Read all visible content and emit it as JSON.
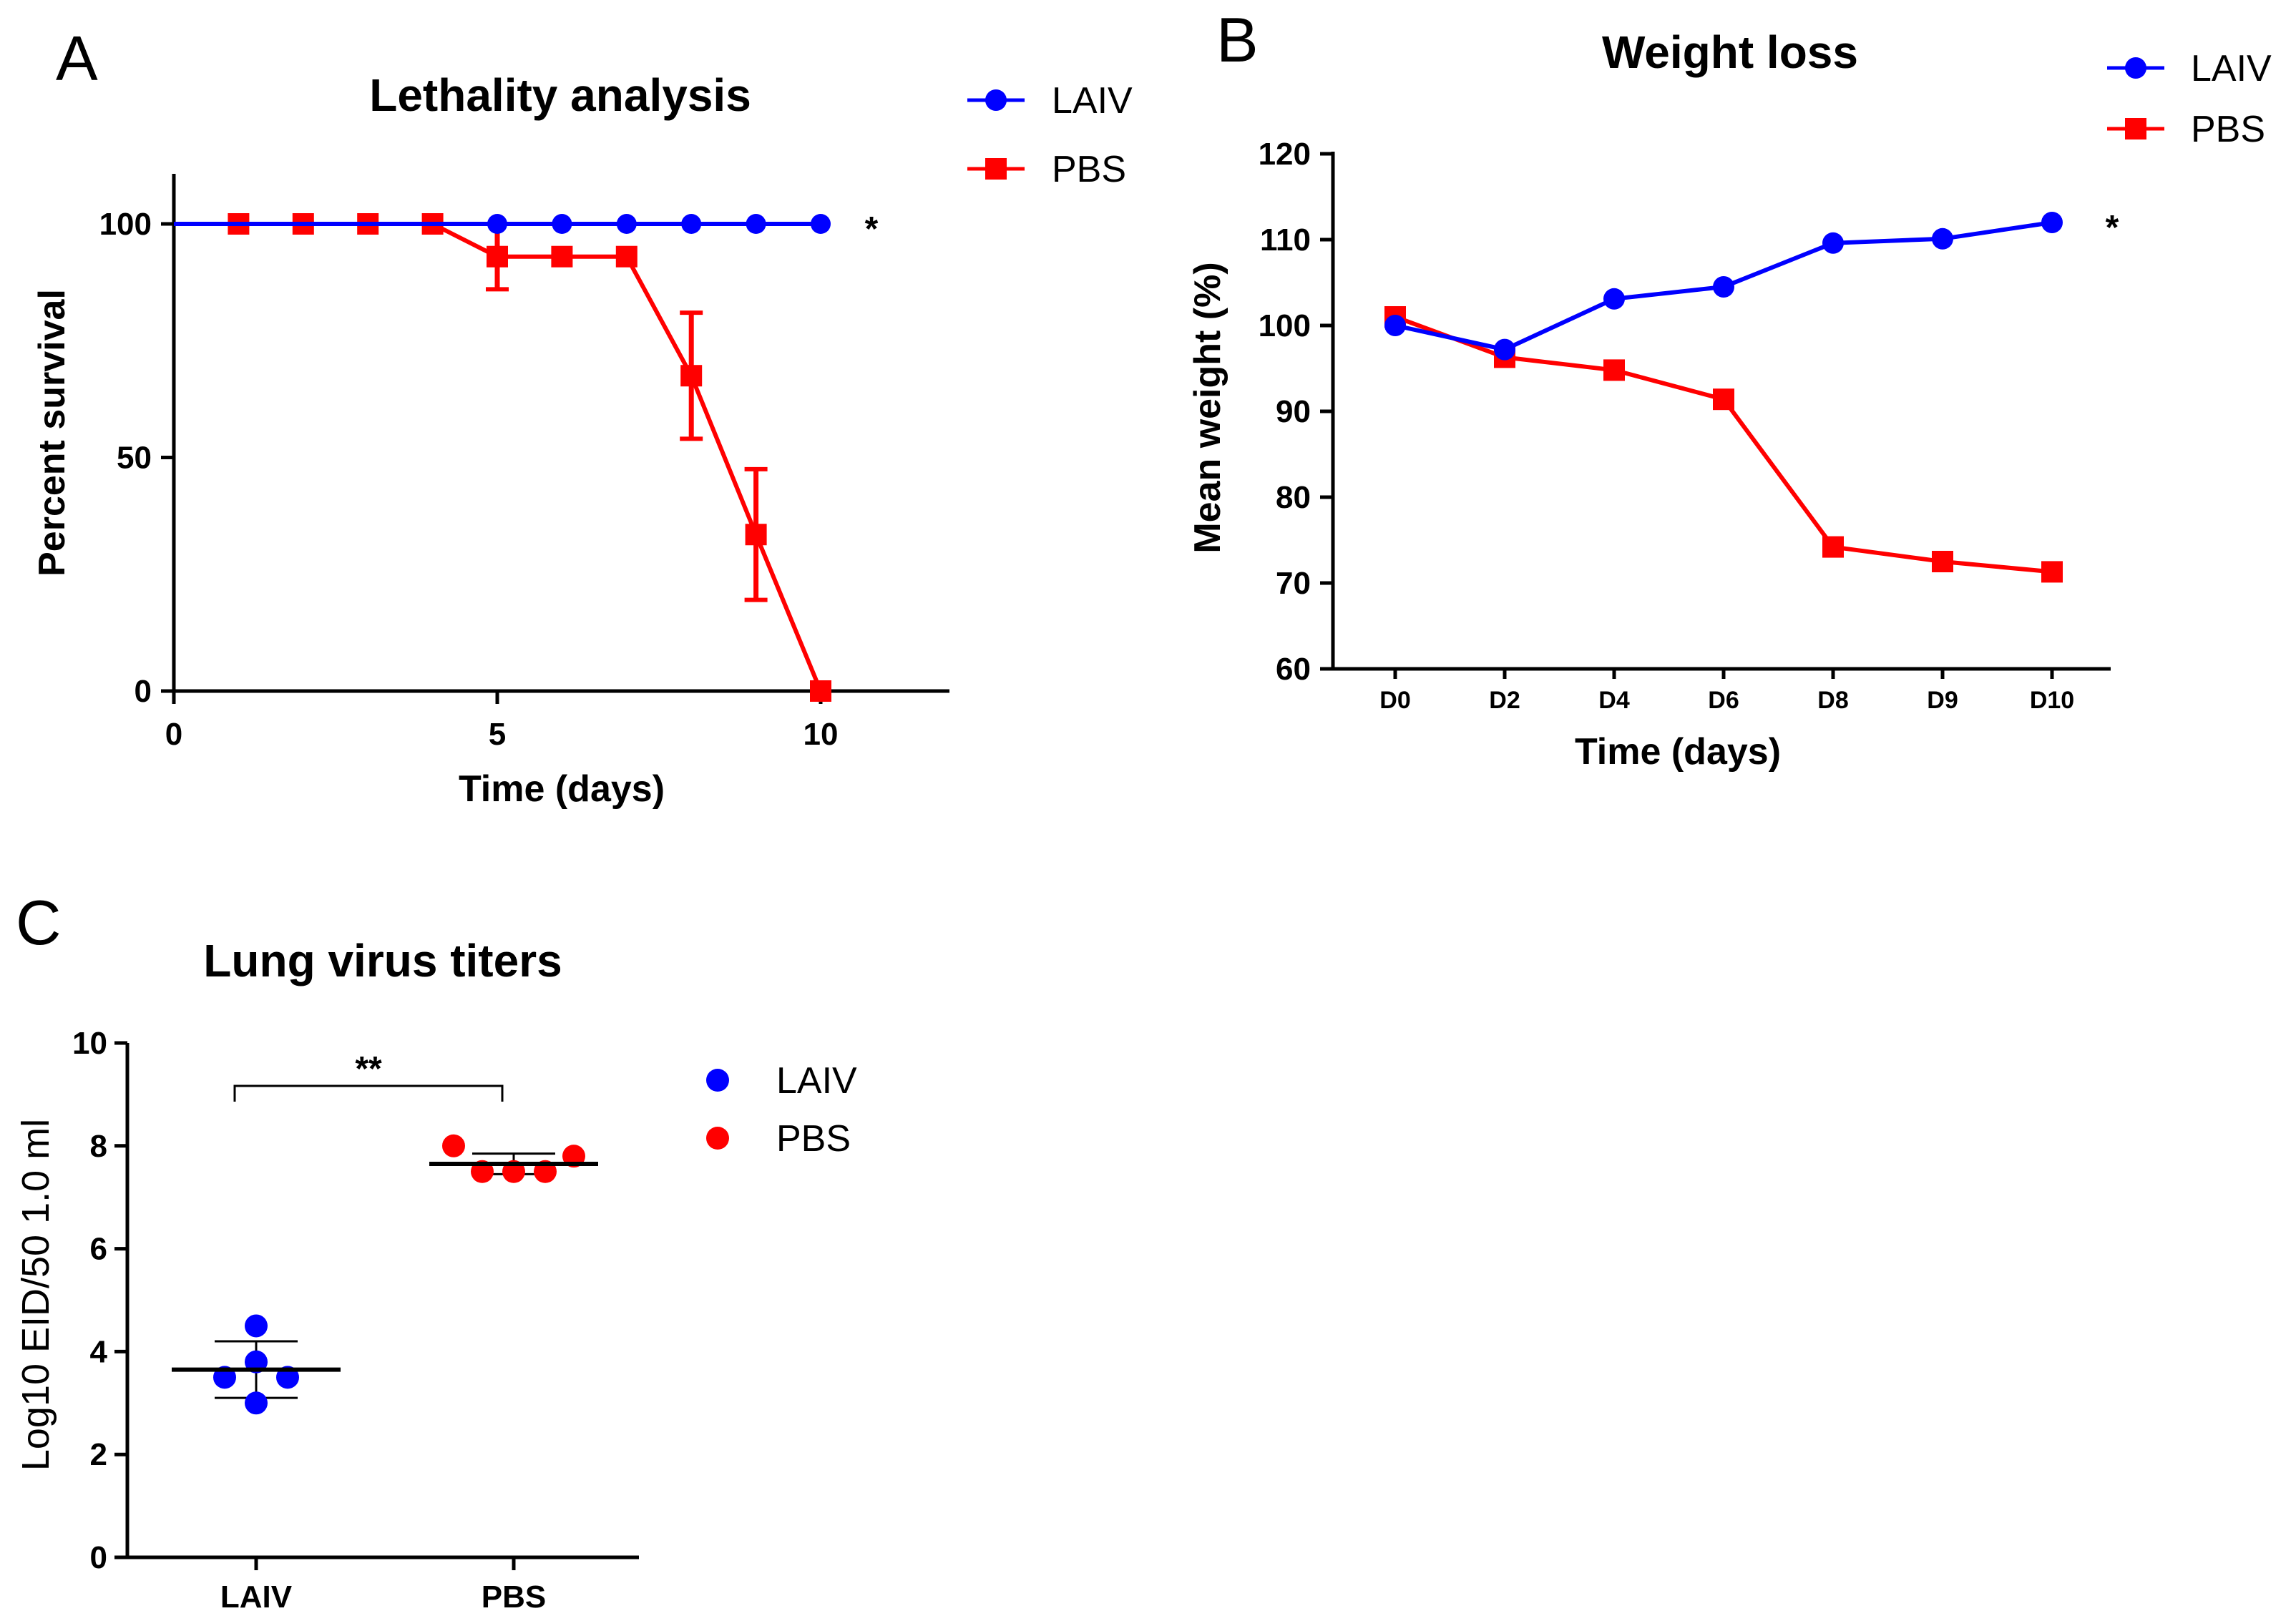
{
  "panels": {
    "a_letter": "A",
    "b_letter": "B",
    "c_letter": "C"
  },
  "colors": {
    "laiv": "#0000ff",
    "pbs": "#ff0000",
    "axis": "#000000"
  },
  "chart_data": [
    {
      "id": "A",
      "type": "line",
      "title": "Lethality analysis",
      "xlabel": "Time (days)",
      "ylabel": "Percent survival",
      "xlim": [
        0,
        12
      ],
      "ylim": [
        0,
        110
      ],
      "xticks": [
        0,
        5,
        10
      ],
      "xtick_labels": [
        "0",
        "5",
        "10"
      ],
      "yticks": [
        0,
        50,
        100
      ],
      "ytick_labels": [
        "0",
        "50",
        "100"
      ],
      "annotation": "*",
      "legend": [
        "LAIV",
        "PBS"
      ],
      "series": [
        {
          "name": "LAIV",
          "marker": "circle",
          "x": [
            0,
            1,
            2,
            3,
            4,
            5,
            6,
            7,
            8,
            9,
            10
          ],
          "y": [
            100,
            100,
            100,
            100,
            100,
            100,
            100,
            100,
            100,
            100,
            100
          ]
        },
        {
          "name": "PBS",
          "marker": "square",
          "x": [
            0,
            1,
            2,
            3,
            4,
            5,
            6,
            7,
            8,
            9,
            10
          ],
          "y": [
            100,
            100,
            100,
            100,
            100,
            93,
            93,
            93,
            67.5,
            33.5,
            0
          ],
          "error": [
            0,
            0,
            0,
            0,
            0,
            7,
            0,
            0,
            13.5,
            14,
            0
          ]
        }
      ]
    },
    {
      "id": "B",
      "type": "line",
      "title": "Weight loss",
      "xlabel": "Time (days)",
      "ylabel": "Mean weight (%)",
      "categories": [
        "D0",
        "D2",
        "D4",
        "D6",
        "D8",
        "D9",
        "D10"
      ],
      "ylim": [
        60,
        120
      ],
      "yticks": [
        60,
        70,
        80,
        90,
        100,
        110,
        120
      ],
      "ytick_labels": [
        "60",
        "70",
        "80",
        "90",
        "100",
        "110",
        "120"
      ],
      "annotation": "*",
      "legend": [
        "LAIV",
        "PBS"
      ],
      "series": [
        {
          "name": "LAIV",
          "marker": "circle",
          "values": [
            100,
            97.2,
            103.1,
            104.5,
            109.6,
            110.1,
            112
          ]
        },
        {
          "name": "PBS",
          "marker": "square",
          "values": [
            101,
            96.3,
            94.8,
            91.4,
            74.2,
            72.5,
            71.3
          ]
        }
      ]
    },
    {
      "id": "C",
      "type": "scatter",
      "title": "Lung virus titers",
      "xlabel": "",
      "ylabel": "Log10 EID/50 1.0 ml",
      "categories": [
        "LAIV",
        "PBS"
      ],
      "ylim": [
        0,
        10
      ],
      "yticks": [
        0,
        2,
        4,
        6,
        8,
        10
      ],
      "ytick_labels": [
        "0",
        "2",
        "4",
        "6",
        "8",
        "10"
      ],
      "significance": "**",
      "legend": [
        "LAIV",
        "PBS"
      ],
      "series": [
        {
          "name": "LAIV",
          "points": [
            4.5,
            3.5,
            3.8,
            3.5,
            3.0
          ],
          "mean": 3.65,
          "sd_low": 3.1,
          "sd_high": 4.2
        },
        {
          "name": "PBS",
          "points": [
            8.0,
            7.5,
            7.5,
            7.5,
            7.8
          ],
          "mean": 7.65,
          "sd_low": 7.45,
          "sd_high": 7.85
        }
      ]
    }
  ]
}
